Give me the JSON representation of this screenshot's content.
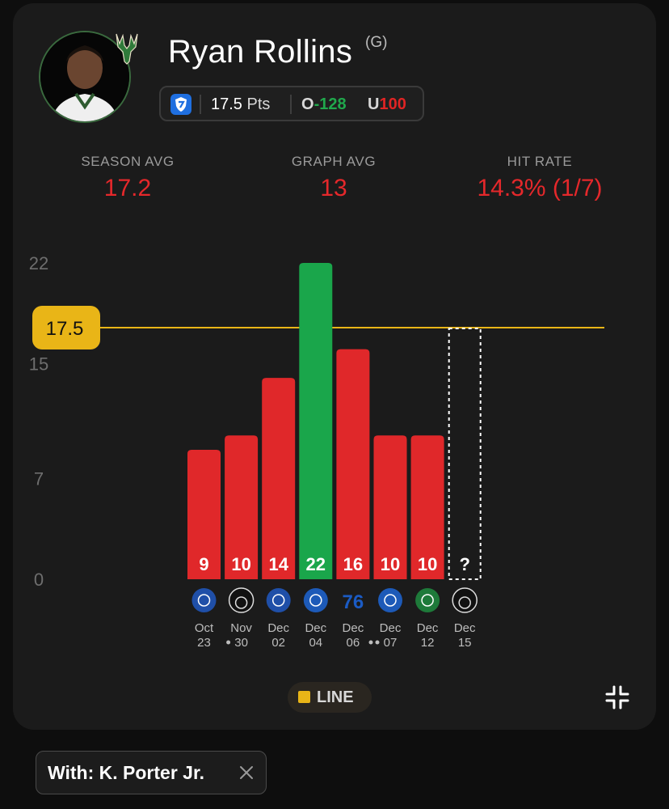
{
  "player": {
    "name": "Ryan Rollins",
    "position": "(G)",
    "team_logo": "bucks-logo",
    "avatar": "player-headshot"
  },
  "prop": {
    "book_icon": "sportsbook-shield-icon",
    "line": "17.5",
    "unit": "Pts",
    "over_label": "O",
    "over_odds": "-128",
    "under_label": "U",
    "under_odds": "100",
    "over_color": "#20a84c",
    "under_color": "#e02424"
  },
  "stats": {
    "season_avg_label": "SEASON AVG",
    "season_avg": "17.2",
    "graph_avg_label": "GRAPH AVG",
    "graph_avg": "13",
    "hit_rate_label": "HIT RATE",
    "hit_rate": "14.3% (1/7)"
  },
  "chart_data": {
    "type": "bar",
    "title": "",
    "xlabel": "",
    "ylabel": "",
    "ylim": [
      0,
      22
    ],
    "yticks": [
      "0",
      "7",
      "15",
      "22"
    ],
    "line_value": 17.5,
    "line_label": "17.5",
    "categories": [
      {
        "month": "Oct",
        "day": "23",
        "opponent": "wizards-logo",
        "dots": 0
      },
      {
        "month": "Nov",
        "day": "30",
        "opponent": "nets-logo",
        "dots": 1
      },
      {
        "month": "Dec",
        "day": "02",
        "opponent": "wizards-logo",
        "dots": 0
      },
      {
        "month": "Dec",
        "day": "04",
        "opponent": "pistons-logo",
        "dots": 0
      },
      {
        "month": "Dec",
        "day": "06",
        "opponent": "76ers-logo",
        "dots": 0
      },
      {
        "month": "Dec",
        "day": "07",
        "opponent": "pistons-logo",
        "dots": 2
      },
      {
        "month": "Dec",
        "day": "12",
        "opponent": "celtics-logo",
        "dots": 0
      },
      {
        "month": "Dec",
        "day": "15",
        "opponent": "nets-logo",
        "dots": 0
      }
    ],
    "values": [
      9,
      10,
      14,
      22,
      16,
      10,
      10,
      null
    ],
    "pending_label": "?",
    "colors": {
      "over": "#1aa64b",
      "under": "#e0282a",
      "line": "#e9b517",
      "grid_text": "#6e6e6e"
    }
  },
  "legend": {
    "label": "LINE",
    "swatch_color": "#e9b517"
  },
  "controls": {
    "collapse_icon": "collapse-icon"
  },
  "filter_chip": {
    "label": "With: K. Porter Jr.",
    "close_icon": "close-icon"
  }
}
